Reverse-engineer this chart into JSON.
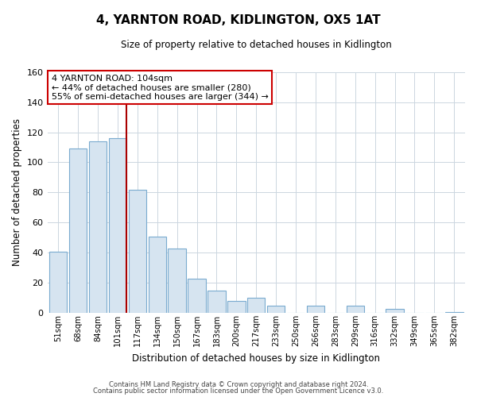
{
  "title": "4, YARNTON ROAD, KIDLINGTON, OX5 1AT",
  "subtitle": "Size of property relative to detached houses in Kidlington",
  "xlabel": "Distribution of detached houses by size in Kidlington",
  "ylabel": "Number of detached properties",
  "bar_labels": [
    "51sqm",
    "68sqm",
    "84sqm",
    "101sqm",
    "117sqm",
    "134sqm",
    "150sqm",
    "167sqm",
    "183sqm",
    "200sqm",
    "217sqm",
    "233sqm",
    "250sqm",
    "266sqm",
    "283sqm",
    "299sqm",
    "316sqm",
    "332sqm",
    "349sqm",
    "365sqm",
    "382sqm"
  ],
  "bar_values": [
    41,
    109,
    114,
    116,
    82,
    51,
    43,
    23,
    15,
    8,
    10,
    5,
    0,
    5,
    0,
    5,
    0,
    3,
    0,
    0,
    1
  ],
  "bar_color": "#d6e4f0",
  "bar_edge_color": "#7aabcf",
  "highlight_index": 3,
  "highlight_line_color": "#aa0000",
  "annotation_text": "4 YARNTON ROAD: 104sqm\n← 44% of detached houses are smaller (280)\n55% of semi-detached houses are larger (344) →",
  "annotation_box_color": "#ffffff",
  "annotation_box_edge_color": "#cc0000",
  "ylim": [
    0,
    160
  ],
  "yticks": [
    0,
    20,
    40,
    60,
    80,
    100,
    120,
    140,
    160
  ],
  "footer_line1": "Contains HM Land Registry data © Crown copyright and database right 2024.",
  "footer_line2": "Contains public sector information licensed under the Open Government Licence v3.0.",
  "background_color": "#ffffff",
  "grid_color": "#ccd6e0"
}
